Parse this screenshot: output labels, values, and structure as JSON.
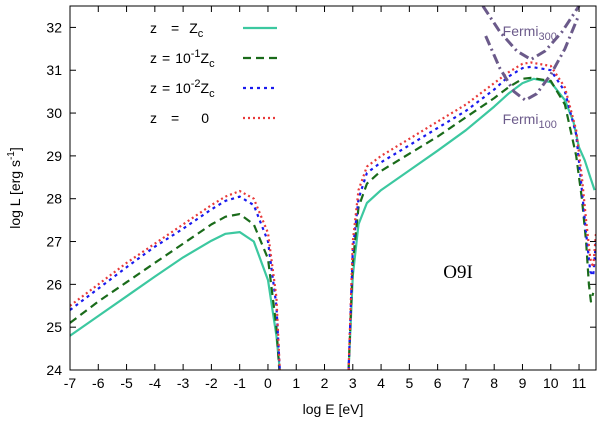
{
  "chart_data": {
    "type": "line",
    "xlabel": "log E [eV]",
    "ylabel": "log L [erg s",
    "ylabel_sup": "-1",
    "ylabel_end": "]",
    "xlim": [
      -7,
      11.6
    ],
    "ylim": [
      24,
      32.5
    ],
    "xticks": [
      "-7",
      "-6",
      "-5",
      "-4",
      "-3",
      "-2",
      "-1",
      "0",
      "1",
      "2",
      "3",
      "4",
      "5",
      "6",
      "7",
      "8",
      "9",
      "10",
      "11"
    ],
    "yticks": [
      "24",
      "25",
      "26",
      "27",
      "28",
      "29",
      "30",
      "31",
      "32"
    ],
    "annotation": "O9I",
    "legend": [
      {
        "lhs": "z",
        "mid": "=",
        "base": "Z",
        "sup": "",
        "sub": "c",
        "tail": ""
      },
      {
        "lhs": "z",
        "mid": "=",
        "base": "10",
        "sup": "-1",
        "sub": "",
        "tail": "Z",
        "tail_sub": "c"
      },
      {
        "lhs": "z",
        "mid": "=",
        "base": "10",
        "sup": "-2",
        "sub": "",
        "tail": "Z",
        "tail_sub": "c"
      },
      {
        "lhs": "z",
        "mid": "=",
        "base": "0",
        "sup": "",
        "sub": "",
        "tail": ""
      }
    ],
    "series": [
      {
        "name": "z = Zc",
        "color": "#3cc8a0",
        "dash": "solid",
        "segments": [
          [
            [
              -7,
              24.8
            ],
            [
              -6,
              25.26
            ],
            [
              -5,
              25.72
            ],
            [
              -4,
              26.18
            ],
            [
              -3,
              26.63
            ],
            [
              -2,
              27.02
            ],
            [
              -1.5,
              27.18
            ],
            [
              -1,
              27.22
            ],
            [
              -0.5,
              27.0
            ],
            [
              0,
              26.1
            ],
            [
              0.3,
              24.8
            ],
            [
              0.42,
              24.0
            ]
          ],
          [
            [
              2.85,
              24.0
            ],
            [
              3.0,
              26.2
            ],
            [
              3.2,
              27.4
            ],
            [
              3.5,
              27.9
            ],
            [
              4,
              28.2
            ],
            [
              5,
              28.66
            ],
            [
              6,
              29.12
            ],
            [
              7,
              29.6
            ],
            [
              8,
              30.15
            ],
            [
              8.5,
              30.45
            ],
            [
              9,
              30.7
            ],
            [
              9.4,
              30.8
            ],
            [
              10,
              30.72
            ],
            [
              10.5,
              30.3
            ],
            [
              10.8,
              29.8
            ],
            [
              11,
              29.2
            ],
            [
              11.2,
              28.9
            ],
            [
              11.4,
              28.5
            ],
            [
              11.55,
              28.2
            ]
          ]
        ]
      },
      {
        "name": "z = 10^-1 Zc",
        "color": "#1a6b1a",
        "dash": "8,5",
        "segments": [
          [
            [
              -7,
              25.1
            ],
            [
              -6,
              25.6
            ],
            [
              -5,
              26.05
            ],
            [
              -4,
              26.5
            ],
            [
              -3,
              26.95
            ],
            [
              -2,
              27.4
            ],
            [
              -1.5,
              27.58
            ],
            [
              -1,
              27.64
            ],
            [
              -0.5,
              27.4
            ],
            [
              0,
              26.6
            ],
            [
              0.3,
              25.0
            ],
            [
              0.4,
              24.0
            ]
          ],
          [
            [
              2.85,
              24.0
            ],
            [
              3.0,
              26.5
            ],
            [
              3.2,
              27.8
            ],
            [
              3.5,
              28.35
            ],
            [
              4,
              28.65
            ],
            [
              5,
              29.05
            ],
            [
              6,
              29.45
            ],
            [
              7,
              29.9
            ],
            [
              8,
              30.35
            ],
            [
              8.5,
              30.6
            ],
            [
              9,
              30.8
            ],
            [
              9.3,
              30.82
            ],
            [
              10,
              30.75
            ],
            [
              10.5,
              30.2
            ],
            [
              10.9,
              29.0
            ],
            [
              11.1,
              28.0
            ],
            [
              11.25,
              27.0
            ],
            [
              11.35,
              26.0
            ],
            [
              11.42,
              25.6
            ],
            [
              11.5,
              25.8
            ]
          ]
        ]
      },
      {
        "name": "z = 10^-2 Zc",
        "color": "#1a1aee",
        "dash": "3,4",
        "segments": [
          [
            [
              -7,
              25.4
            ],
            [
              -6,
              25.9
            ],
            [
              -5,
              26.4
            ],
            [
              -4,
              26.88
            ],
            [
              -3,
              27.3
            ],
            [
              -2,
              27.75
            ],
            [
              -1.5,
              27.95
            ],
            [
              -1,
              28.05
            ],
            [
              -0.5,
              27.85
            ],
            [
              0,
              27.0
            ],
            [
              0.3,
              25.5
            ],
            [
              0.42,
              24.0
            ]
          ],
          [
            [
              2.85,
              24.0
            ],
            [
              3.0,
              26.8
            ],
            [
              3.2,
              28.0
            ],
            [
              3.5,
              28.6
            ],
            [
              4,
              28.85
            ],
            [
              5,
              29.25
            ],
            [
              6,
              29.65
            ],
            [
              7,
              30.05
            ],
            [
              8,
              30.55
            ],
            [
              8.5,
              30.85
            ],
            [
              9,
              31.05
            ],
            [
              9.3,
              31.08
            ],
            [
              10,
              31.0
            ],
            [
              10.5,
              30.5
            ],
            [
              10.9,
              29.5
            ],
            [
              11.1,
              28.2
            ],
            [
              11.25,
              27.2
            ],
            [
              11.4,
              26.3
            ],
            [
              11.5,
              26.2
            ],
            [
              11.6,
              27.0
            ]
          ]
        ]
      },
      {
        "name": "z = 0",
        "color": "#e83a3a",
        "dash": "2,3",
        "segments": [
          [
            [
              -7,
              25.5
            ],
            [
              -6,
              26.0
            ],
            [
              -5,
              26.5
            ],
            [
              -4,
              26.95
            ],
            [
              -3,
              27.4
            ],
            [
              -2,
              27.85
            ],
            [
              -1.5,
              28.05
            ],
            [
              -1,
              28.18
            ],
            [
              -0.5,
              28.0
            ],
            [
              0,
              27.2
            ],
            [
              0.3,
              25.7
            ],
            [
              0.42,
              24.0
            ]
          ],
          [
            [
              2.85,
              24.0
            ],
            [
              3.0,
              27.0
            ],
            [
              3.2,
              28.2
            ],
            [
              3.5,
              28.75
            ],
            [
              4,
              29.0
            ],
            [
              5,
              29.4
            ],
            [
              6,
              29.8
            ],
            [
              7,
              30.2
            ],
            [
              8,
              30.7
            ],
            [
              8.5,
              30.95
            ],
            [
              9,
              31.15
            ],
            [
              9.3,
              31.18
            ],
            [
              10,
              31.1
            ],
            [
              10.5,
              30.6
            ],
            [
              10.9,
              29.6
            ],
            [
              11.1,
              28.5
            ],
            [
              11.25,
              27.5
            ],
            [
              11.4,
              26.6
            ],
            [
              11.5,
              26.4
            ],
            [
              11.6,
              27.2
            ]
          ]
        ]
      },
      {
        "name": "Fermi 300",
        "color": "#6b5a8a",
        "dash": "10,4,2,4",
        "segments": [
          [
            [
              7.6,
              32.5
            ],
            [
              8.2,
              31.9
            ],
            [
              8.8,
              31.45
            ],
            [
              9.3,
              31.25
            ],
            [
              9.8,
              31.45
            ],
            [
              10.4,
              31.9
            ],
            [
              11.0,
              32.5
            ]
          ]
        ]
      },
      {
        "name": "Fermi 100",
        "color": "#6b5a8a",
        "dash": "10,4,2,4",
        "segments": [
          [
            [
              7.7,
              31.8
            ],
            [
              8.2,
              31.05
            ],
            [
              8.7,
              30.5
            ],
            [
              9.1,
              30.3
            ],
            [
              9.5,
              30.45
            ],
            [
              10.0,
              30.9
            ],
            [
              10.5,
              31.5
            ],
            [
              11.0,
              32.3
            ]
          ]
        ]
      }
    ],
    "fermi_labels": [
      {
        "base": "Fermi",
        "sub": "300",
        "x": 8.3,
        "y": 31.8
      },
      {
        "base": "Fermi",
        "sub": "100",
        "x": 8.3,
        "y": 29.75
      }
    ]
  }
}
